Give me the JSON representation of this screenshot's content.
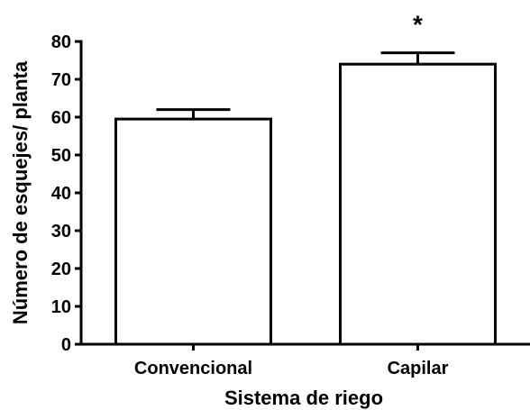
{
  "chart_data": {
    "type": "bar",
    "categories": [
      "Convencional",
      "Capilar"
    ],
    "values": [
      59.5,
      74.0
    ],
    "error": [
      2.5,
      3.0
    ],
    "annotations": [
      "",
      "*"
    ],
    "title": "",
    "xlabel": "Sistema de riego",
    "ylabel": "Número de esquejes/ planta",
    "ylim": [
      0,
      80
    ],
    "yticks": [
      "0",
      "10",
      "20",
      "30",
      "40",
      "50",
      "60",
      "70",
      "80"
    ],
    "grid": false,
    "bar_fill": "#ffffff",
    "bar_stroke": "#000000"
  }
}
